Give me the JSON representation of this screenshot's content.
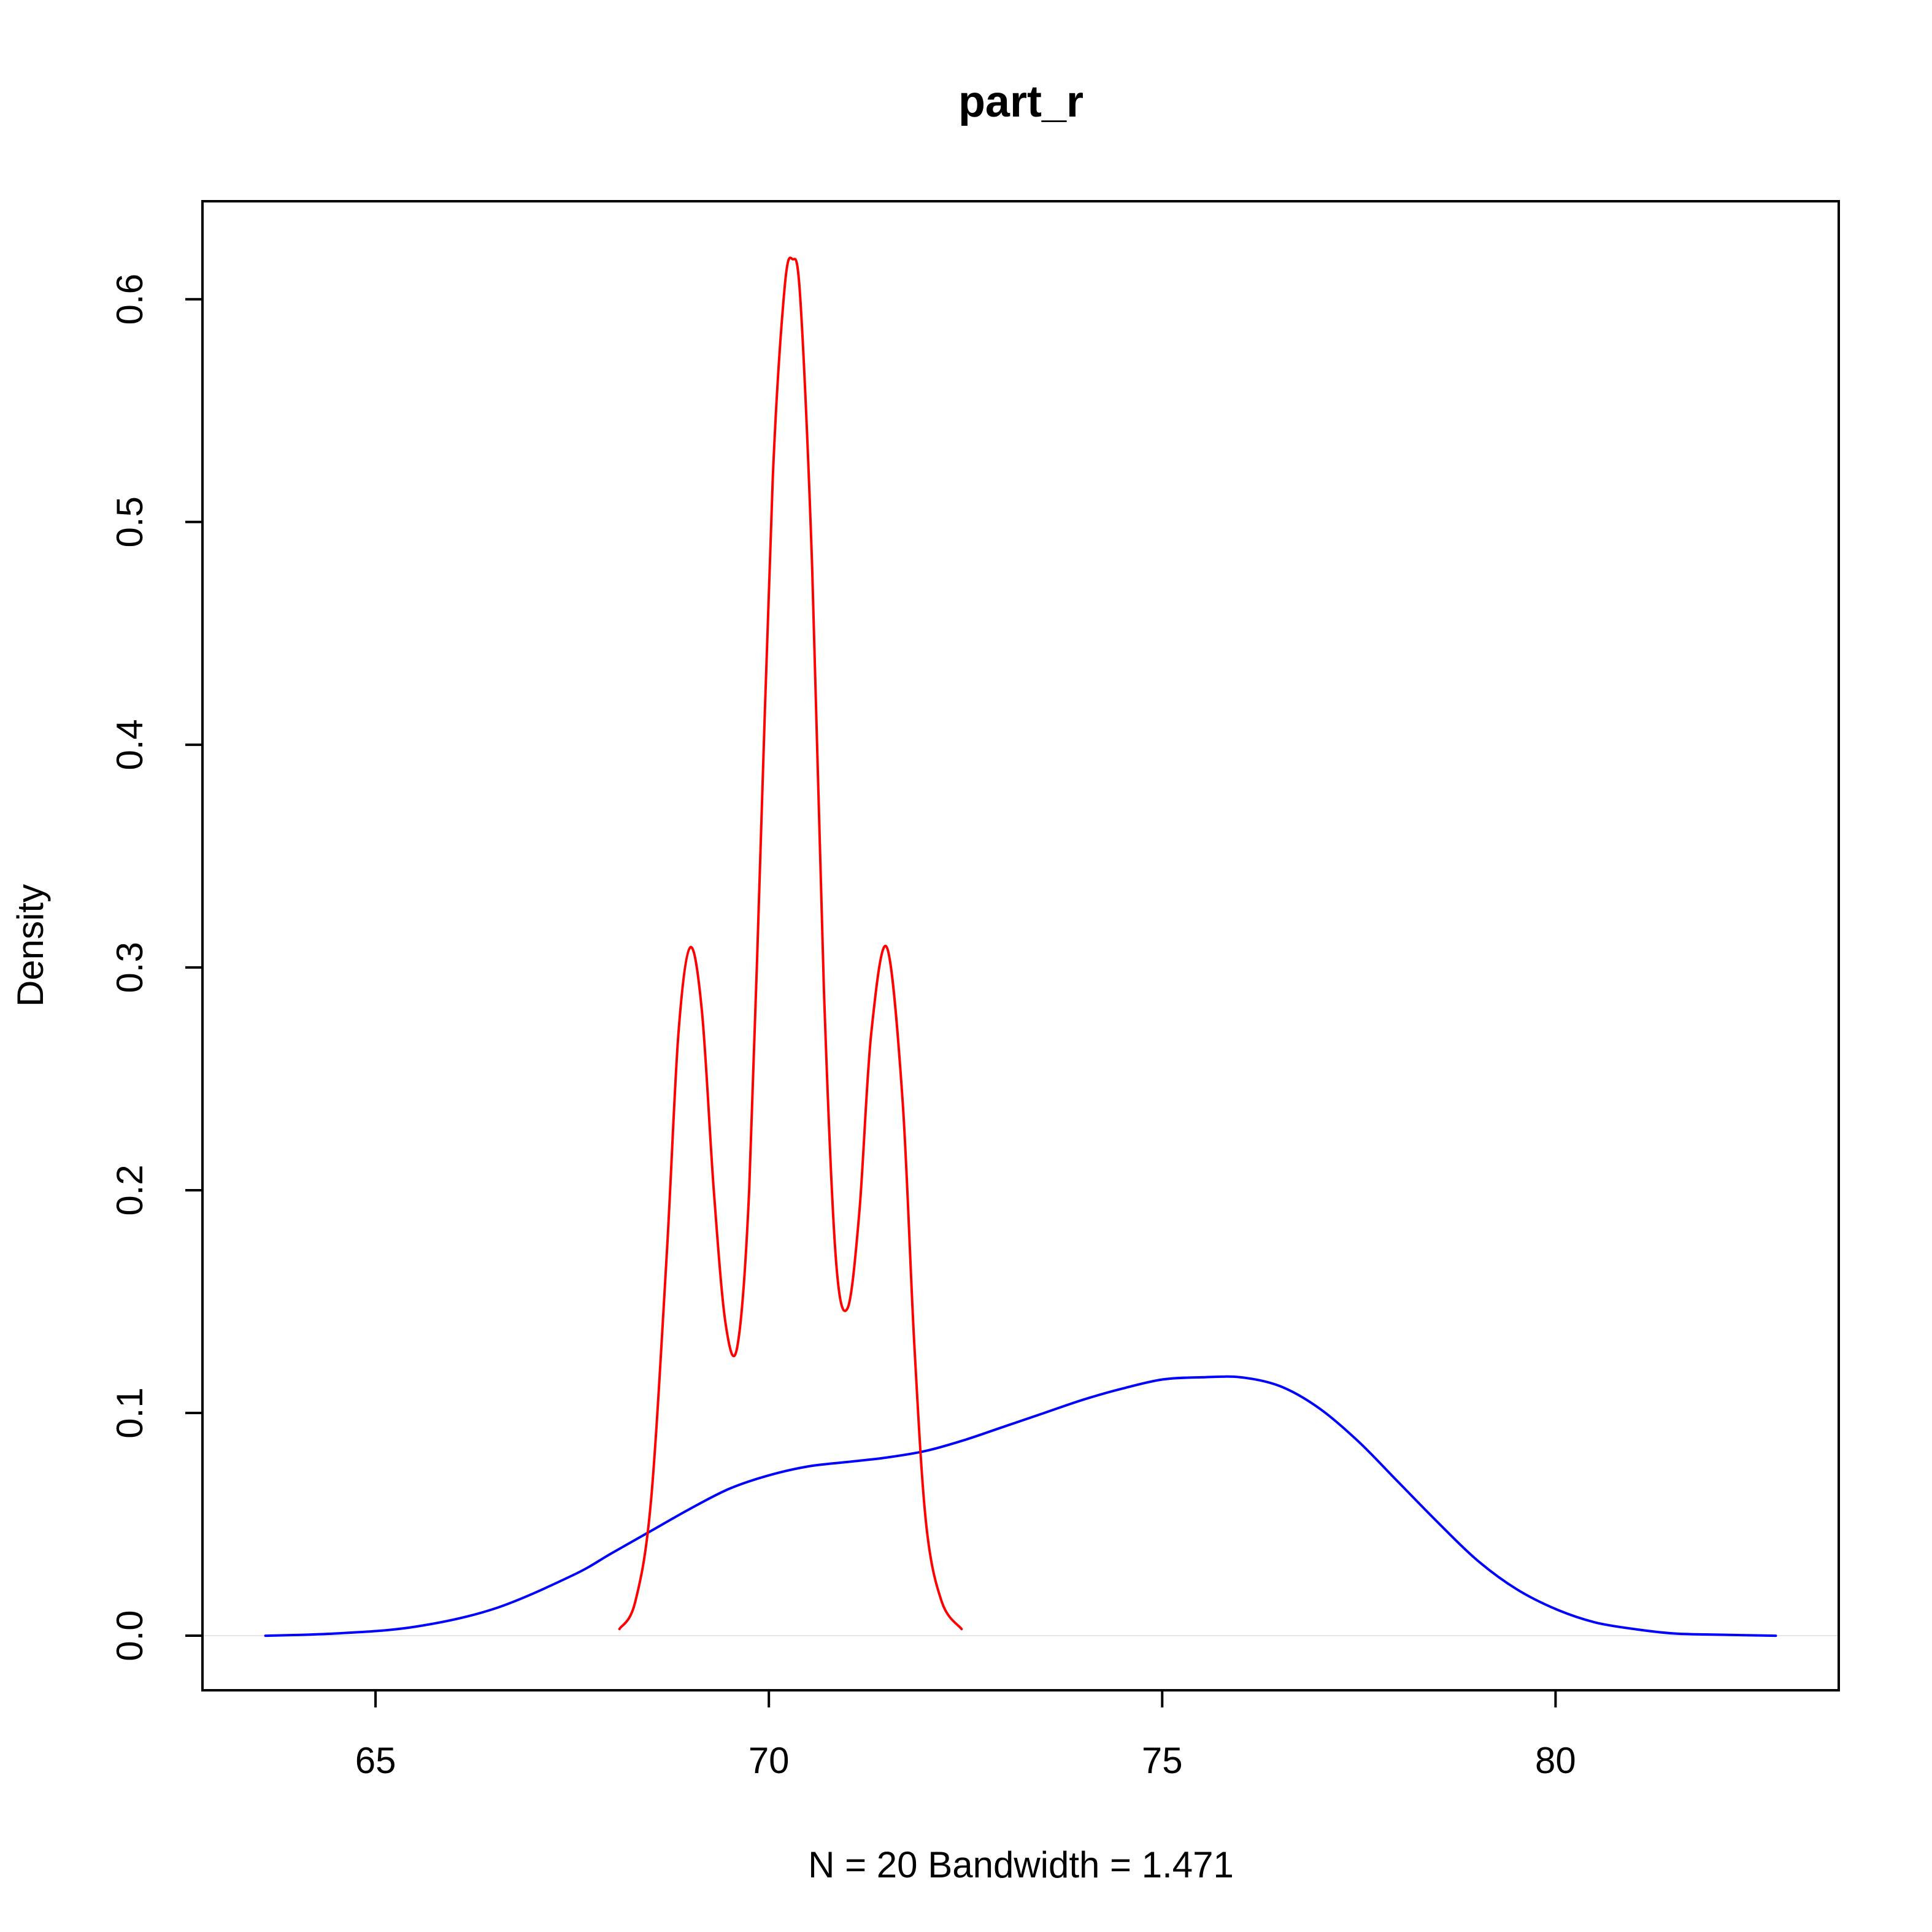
{
  "chart_data": {
    "type": "line",
    "title": "part_r",
    "xlabel": "N = 20   Bandwidth = 1.471",
    "ylabel": "Density",
    "xlim": [
      62.8,
      83.6
    ],
    "ylim": [
      -0.0245,
      0.644
    ],
    "x_ticks": [
      65,
      70,
      75,
      80
    ],
    "x_tick_labels": [
      "65",
      "70",
      "75",
      "80"
    ],
    "y_ticks": [
      0.0,
      0.1,
      0.2,
      0.3,
      0.4,
      0.5,
      0.6
    ],
    "y_tick_labels": [
      "0.0",
      "0.1",
      "0.2",
      "0.3",
      "0.4",
      "0.5",
      "0.6"
    ],
    "grid": false,
    "legend": "none",
    "zero_line": true,
    "series": [
      {
        "color": "#0000ff",
        "x": [
          63.6,
          64.5,
          65.5,
          66.5,
          67.5,
          68.0,
          68.5,
          69.0,
          69.5,
          70.0,
          70.5,
          71.0,
          71.5,
          72.0,
          72.5,
          73.0,
          73.5,
          74.0,
          74.5,
          75.0,
          75.5,
          76.0,
          76.5,
          77.0,
          77.5,
          78.0,
          78.5,
          79.0,
          79.5,
          80.0,
          80.5,
          81.0,
          81.5,
          82.0,
          82.8
        ],
        "y": [
          0.0,
          0.001,
          0.004,
          0.012,
          0.027,
          0.037,
          0.047,
          0.057,
          0.066,
          0.072,
          0.076,
          0.078,
          0.08,
          0.083,
          0.088,
          0.094,
          0.1,
          0.106,
          0.111,
          0.115,
          0.116,
          0.116,
          0.112,
          0.102,
          0.087,
          0.069,
          0.051,
          0.034,
          0.021,
          0.012,
          0.006,
          0.003,
          0.001,
          0.0005,
          0.0
        ]
      },
      {
        "color": "#ff0000",
        "x": [
          68.1,
          68.3,
          68.5,
          68.7,
          68.85,
          69.0,
          69.15,
          69.3,
          69.45,
          69.6,
          69.75,
          69.9,
          70.05,
          70.2,
          70.3,
          70.4,
          70.55,
          70.7,
          70.85,
          71.0,
          71.15,
          71.3,
          71.5,
          71.7,
          71.85,
          72.0,
          72.2,
          72.45
        ],
        "y": [
          0.003,
          0.015,
          0.06,
          0.17,
          0.27,
          0.309,
          0.28,
          0.2,
          0.14,
          0.13,
          0.2,
          0.36,
          0.52,
          0.605,
          0.618,
          0.6,
          0.48,
          0.29,
          0.17,
          0.147,
          0.19,
          0.27,
          0.309,
          0.24,
          0.13,
          0.05,
          0.015,
          0.003
        ]
      }
    ]
  }
}
